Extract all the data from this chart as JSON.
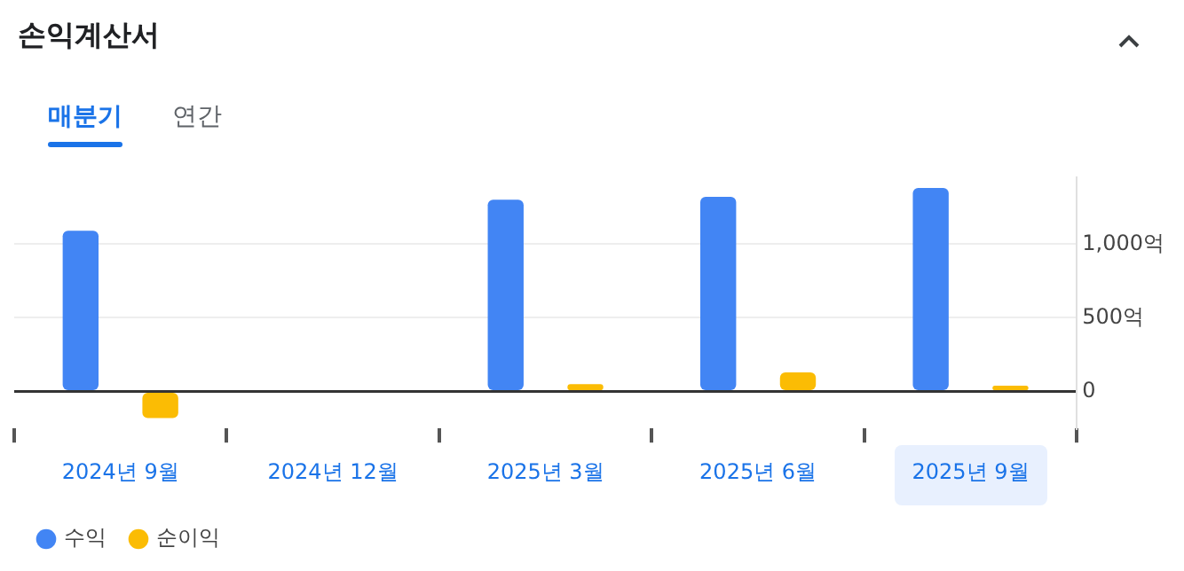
{
  "chart_data": {
    "type": "bar",
    "title": "손익계산서",
    "annotations": [
      "매분기",
      "연간"
    ],
    "categories": [
      "2024년 9월",
      "2024년 12월",
      "2025년 3월",
      "2025년 6월",
      "2025년 9월"
    ],
    "series": [
      {
        "name": "수익",
        "color": "#4285f4",
        "values": [
          1090,
          null,
          1300,
          1320,
          1380
        ]
      },
      {
        "name": "순이익",
        "color": "#fbbc04",
        "values": [
          -180,
          null,
          50,
          130,
          40
        ]
      }
    ],
    "ylim": [
      -250,
      1450
    ],
    "yticks": [
      {
        "value": 0,
        "label": "0"
      },
      {
        "value": 500,
        "label": "500억"
      },
      {
        "value": 1000,
        "label": "1,000억"
      }
    ],
    "grid": "y",
    "legend": "bottom left"
  }
}
